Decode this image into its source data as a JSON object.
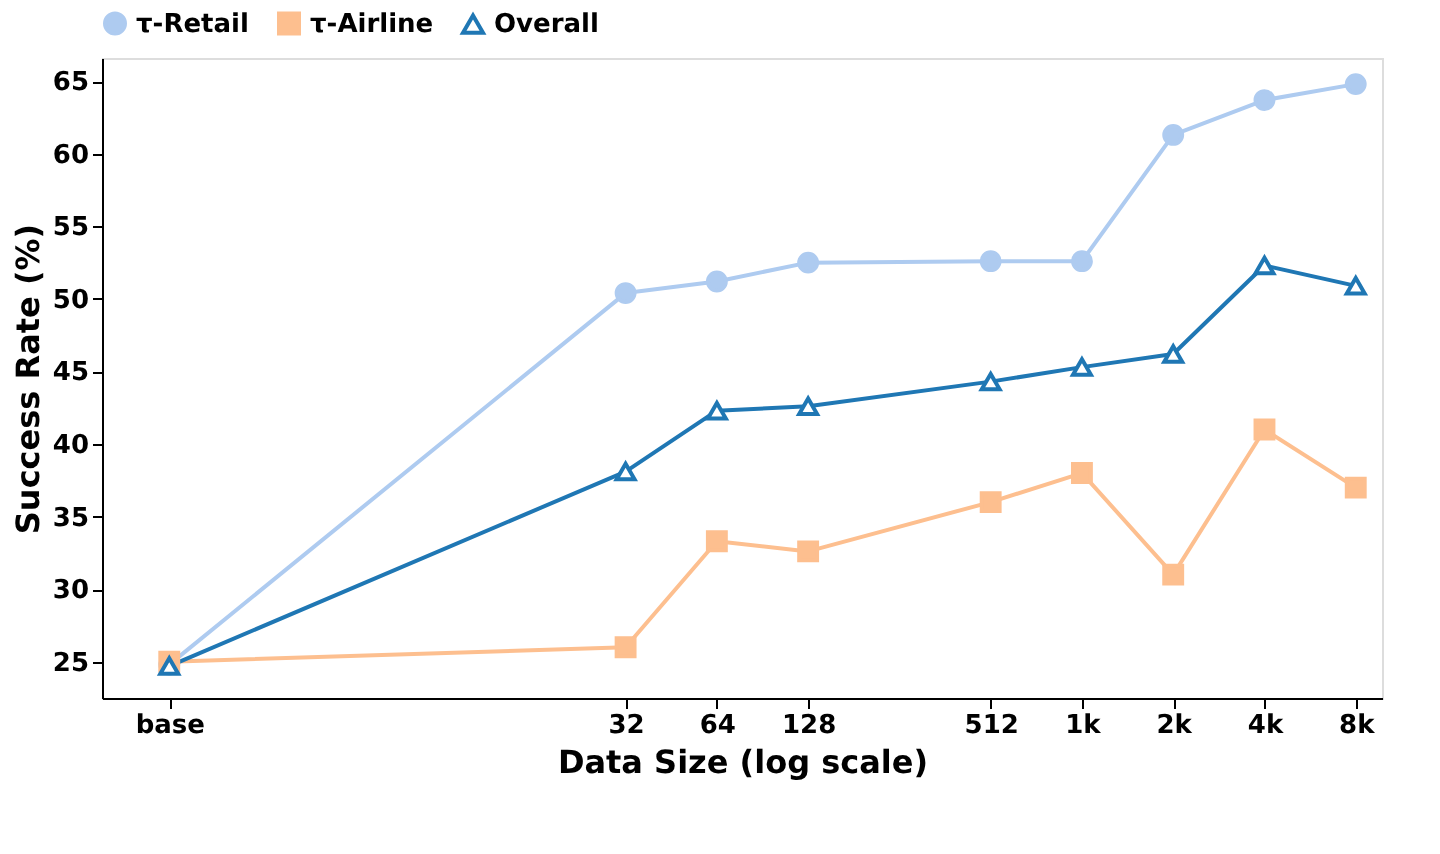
{
  "chart_data": {
    "type": "line",
    "xlabel": "Data Size (log scale)",
    "ylabel": "Success Rate (%)",
    "x": [
      1,
      32,
      64,
      128,
      512,
      1024,
      2048,
      4096,
      8192
    ],
    "series": [
      {
        "name": "τ-Retail",
        "color": "#aecbf0",
        "marker": "circle",
        "values": [
          24.8,
          50.4,
          51.2,
          52.5,
          52.6,
          52.6,
          61.3,
          63.7,
          64.8
        ]
      },
      {
        "name": "τ-Airline",
        "color": "#fdbf8f",
        "marker": "square",
        "values": [
          25.0,
          26.0,
          33.3,
          32.6,
          36.0,
          38.0,
          31.0,
          41.0,
          37.0
        ]
      },
      {
        "name": "Overall",
        "color": "#1f77b4",
        "marker": "triangle",
        "values": [
          24.7,
          38.1,
          42.3,
          42.6,
          44.3,
          45.3,
          46.2,
          52.3,
          50.9
        ]
      }
    ],
    "log": "x",
    "xlim": [
      0.6,
      10000
    ],
    "xticks": [
      {
        "value": 1,
        "label": "base"
      },
      32,
      64,
      128,
      512,
      {
        "value": 1024,
        "label": "1k"
      },
      {
        "value": 2048,
        "label": "2k"
      },
      {
        "value": 4096,
        "label": "4k"
      },
      {
        "value": 8192,
        "label": "8k"
      }
    ],
    "ylim": [
      22.5,
      66.6
    ],
    "yticks": [
      25,
      30,
      35,
      40,
      45,
      50,
      55,
      60,
      65
    ],
    "grid": false,
    "legend": "top",
    "line_style": "solid"
  }
}
